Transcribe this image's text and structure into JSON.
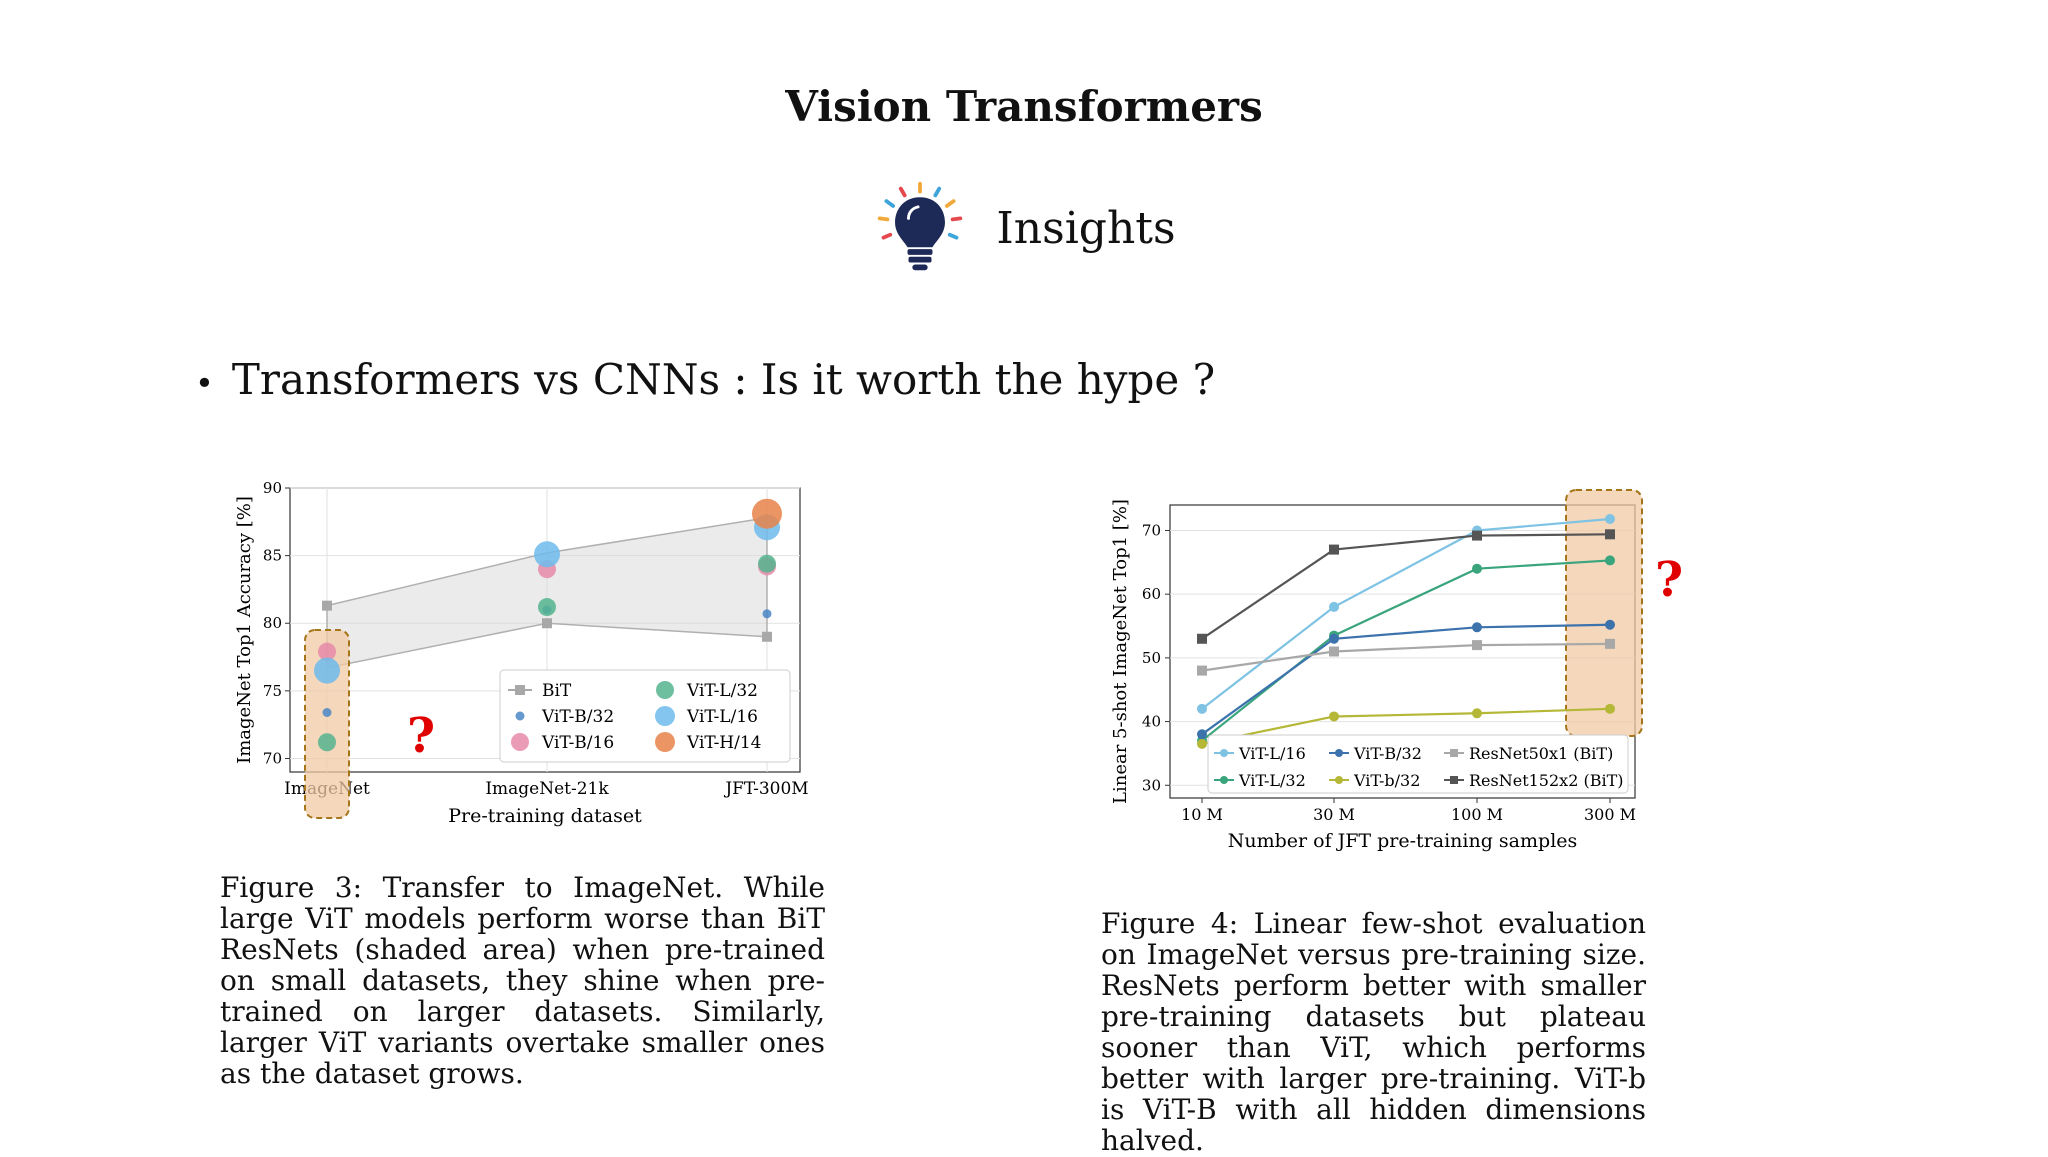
{
  "slide": {
    "title": "Vision Transformers",
    "subtitle": "Insights",
    "bullet": "Transformers vs CNNs : Is it worth the hype ?",
    "question_mark": "?",
    "colors": {
      "highlight_fill": "#f2c9a6",
      "highlight_border": "#a5751a",
      "question": "#e00000"
    },
    "icons": [
      "lightbulb-icon"
    ]
  },
  "captions": {
    "fig3": "Figure 3: Transfer to ImageNet. While large ViT models perform worse than BiT ResNets (shaded area) when pre-trained on small datasets, they shine when pre-trained on larger datasets. Similarly, larger ViT variants overtake smaller ones as the dataset grows.",
    "fig4": "Figure 4: Linear few-shot evaluation on ImageNet versus pre-training size. ResNets perform better with smaller pre-training datasets but plateau sooner than ViT, which performs better with larger pre-training. ViT-b is ViT-B with all hidden dimensions halved."
  },
  "chart_data": [
    {
      "type": "scatter",
      "title": "",
      "xlabel": "Pre-training dataset",
      "ylabel": "ImageNet Top1 Accuracy [%]",
      "categories": [
        "ImageNet",
        "ImageNet-21k",
        "JFT-300M"
      ],
      "ylim": [
        69,
        90
      ],
      "yticks": [
        70,
        75,
        80,
        85,
        90
      ],
      "grid": true,
      "legend_position": "bottom-right",
      "bit_band": {
        "upper": [
          81.3,
          85.2,
          87.8
        ],
        "lower": [
          76.7,
          80.0,
          79.0
        ]
      },
      "series": [
        {
          "name": "BiT",
          "color": "#a8a8a8",
          "marker": "square",
          "values": [
            81.3,
            80.0,
            79.0
          ]
        },
        {
          "name": "ViT-B/32",
          "color": "#4a86c5",
          "marker": "dot-small",
          "values": [
            73.4,
            81.0,
            80.7
          ]
        },
        {
          "name": "ViT-B/16",
          "color": "#e68aa9",
          "marker": "dot",
          "values": [
            77.9,
            84.0,
            84.2
          ]
        },
        {
          "name": "ViT-L/32",
          "color": "#55b48f",
          "marker": "dot",
          "values": [
            71.2,
            81.2,
            84.4
          ]
        },
        {
          "name": "ViT-L/16",
          "color": "#6dbbec",
          "marker": "dot-large",
          "values": [
            76.5,
            85.1,
            87.1
          ]
        },
        {
          "name": "ViT-H/14",
          "color": "#e8824a",
          "marker": "dot-xlarge",
          "values": [
            null,
            null,
            88.1
          ]
        }
      ],
      "highlight": {
        "category": "ImageNet"
      }
    },
    {
      "type": "line",
      "title": "",
      "xlabel": "Number of JFT pre-training samples",
      "ylabel": "Linear 5-shot ImageNet Top1 [%]",
      "x": [
        "10 M",
        "30 M",
        "100 M",
        "300 M"
      ],
      "ylim": [
        28,
        74
      ],
      "yticks": [
        30,
        40,
        50,
        60,
        70
      ],
      "grid": true,
      "legend_position": "bottom",
      "series": [
        {
          "name": "ViT-L/16",
          "color": "#7ec3e4",
          "marker": "circle",
          "values": [
            42,
            58,
            70,
            71.8
          ]
        },
        {
          "name": "ViT-L/32",
          "color": "#3aa57d",
          "marker": "circle",
          "values": [
            37,
            53.5,
            64,
            65.3
          ]
        },
        {
          "name": "ViT-B/32",
          "color": "#3c73ad",
          "marker": "circle",
          "values": [
            38,
            53,
            54.8,
            55.2
          ]
        },
        {
          "name": "ViT-b/32",
          "color": "#b5b736",
          "marker": "circle",
          "values": [
            36.5,
            40.8,
            41.3,
            42
          ]
        },
        {
          "name": "ResNet50x1 (BiT)",
          "color": "#a8a8a8",
          "marker": "square",
          "values": [
            48,
            51,
            52,
            52.2
          ]
        },
        {
          "name": "ResNet152x2 (BiT)",
          "color": "#555555",
          "marker": "square",
          "values": [
            53,
            67,
            69.2,
            69.4
          ]
        }
      ],
      "highlight": {
        "x": "300 M"
      }
    }
  ]
}
